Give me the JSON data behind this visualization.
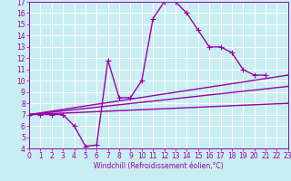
{
  "xlabel": "Windchill (Refroidissement éolien,°C)",
  "xlim": [
    0,
    23
  ],
  "ylim": [
    4,
    17
  ],
  "xticks": [
    0,
    1,
    2,
    3,
    4,
    5,
    6,
    7,
    8,
    9,
    10,
    11,
    12,
    13,
    14,
    15,
    16,
    17,
    18,
    19,
    20,
    21,
    22,
    23
  ],
  "yticks": [
    4,
    5,
    6,
    7,
    8,
    9,
    10,
    11,
    12,
    13,
    14,
    15,
    16,
    17
  ],
  "background_color": "#c9eef1",
  "grid_color": "#ffffff",
  "line_color": "#9900aa",
  "curve_x": [
    0,
    1,
    2,
    3,
    4,
    5,
    6,
    7,
    8,
    9,
    10,
    11,
    12,
    13,
    14,
    15,
    16,
    17,
    18,
    19,
    20,
    21
  ],
  "curve_y": [
    7,
    7,
    7,
    7,
    6,
    4.2,
    4.3,
    11.8,
    8.5,
    8.5,
    10.0,
    15.5,
    17.0,
    17.0,
    16.0,
    14.5,
    13.0,
    13.0,
    12.5,
    11.0,
    10.5,
    10.5
  ],
  "line1_x": [
    0,
    23
  ],
  "line1_y": [
    7.0,
    9.5
  ],
  "line2_x": [
    0,
    23
  ],
  "line2_y": [
    7.0,
    10.5
  ],
  "line3_x": [
    0,
    23
  ],
  "line3_y": [
    7.0,
    8.0
  ],
  "tick_fontsize": 5.5,
  "xlabel_fontsize": 5.5,
  "linewidth": 1.0,
  "markersize": 4
}
